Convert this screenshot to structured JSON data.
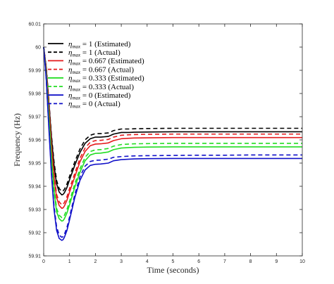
{
  "chart_data": {
    "type": "line",
    "xlabel": "Time (seconds)",
    "ylabel": "Frequency (Hz)",
    "xlim": [
      0,
      10
    ],
    "ylim": [
      59.91,
      60.01
    ],
    "xticks": [
      "0",
      "1",
      "2",
      "3",
      "4",
      "5",
      "6",
      "7",
      "8",
      "9",
      "10"
    ],
    "yticks": [
      "59.91",
      "59.92",
      "59.93",
      "59.94",
      "59.95",
      "59.96",
      "59.97",
      "59.98",
      "59.99",
      "60",
      "60.01"
    ],
    "grid": false,
    "legend_position": "top-left",
    "series": [
      {
        "name_var": "η",
        "name_sub": "max",
        "name_rest": " = 1 (Estimated)",
        "color": "#000000",
        "dash": "solid",
        "x": [
          0,
          0.1,
          0.2,
          0.3,
          0.4,
          0.5,
          0.6,
          0.7,
          0.75,
          0.8,
          0.9,
          1.0,
          1.2,
          1.4,
          1.6,
          1.8,
          2.0,
          2.2,
          2.5,
          2.7,
          3.0,
          3.3,
          3.5,
          4,
          5,
          6,
          7,
          8,
          9,
          10
        ],
        "y": [
          60.0,
          59.991,
          59.976,
          59.961,
          59.949,
          59.941,
          59.9375,
          59.9363,
          59.9365,
          59.9372,
          59.9395,
          59.9428,
          59.949,
          59.9545,
          59.9585,
          59.9605,
          59.9612,
          59.9612,
          59.9615,
          59.9625,
          59.9632,
          59.9632,
          59.9633,
          59.9634,
          59.9635,
          59.9635,
          59.9635,
          59.9635,
          59.9635,
          59.9635
        ]
      },
      {
        "name_var": "η",
        "name_sub": "max",
        "name_rest": " = 1 (Actual)",
        "color": "#000000",
        "dash": "dashed",
        "x": [
          0,
          0.1,
          0.2,
          0.3,
          0.4,
          0.5,
          0.6,
          0.7,
          0.75,
          0.8,
          0.9,
          1.0,
          1.2,
          1.4,
          1.6,
          1.8,
          2.0,
          2.2,
          2.5,
          2.7,
          3.0,
          3.3,
          3.5,
          4,
          5,
          6,
          7,
          8,
          9,
          10
        ],
        "y": [
          60.0,
          59.991,
          59.977,
          59.962,
          59.9505,
          59.9425,
          59.939,
          59.9378,
          59.938,
          59.9387,
          59.941,
          59.9443,
          59.9505,
          59.956,
          59.96,
          59.962,
          59.9627,
          59.9627,
          59.963,
          59.964,
          59.9647,
          59.9647,
          59.9648,
          59.9649,
          59.965,
          59.965,
          59.965,
          59.965,
          59.965,
          59.965
        ]
      },
      {
        "name_var": "η",
        "name_sub": "max",
        "name_rest": " = 0.667 (Estimated)",
        "color": "#e41a1c",
        "dash": "solid",
        "x": [
          0,
          0.1,
          0.2,
          0.3,
          0.4,
          0.5,
          0.6,
          0.7,
          0.75,
          0.8,
          0.9,
          1.0,
          1.2,
          1.4,
          1.6,
          1.8,
          2.0,
          2.2,
          2.5,
          2.7,
          3.0,
          3.3,
          3.5,
          4,
          5,
          6,
          7,
          8,
          9,
          10
        ],
        "y": [
          60.0,
          59.99,
          59.974,
          59.957,
          59.944,
          59.935,
          59.9317,
          59.9305,
          59.9307,
          59.9315,
          59.934,
          59.9375,
          59.944,
          59.9505,
          59.955,
          59.9575,
          59.9582,
          59.9583,
          59.9587,
          59.9597,
          59.9605,
          59.9607,
          59.9608,
          59.9609,
          59.961,
          59.961,
          59.961,
          59.961,
          59.961,
          59.961
        ]
      },
      {
        "name_var": "η",
        "name_sub": "max",
        "name_rest": " = 0.667 (Actual)",
        "color": "#e41a1c",
        "dash": "dashed",
        "x": [
          0,
          0.1,
          0.2,
          0.3,
          0.4,
          0.5,
          0.6,
          0.7,
          0.75,
          0.8,
          0.9,
          1.0,
          1.2,
          1.4,
          1.6,
          1.8,
          2.0,
          2.2,
          2.5,
          2.7,
          3.0,
          3.3,
          3.5,
          4,
          5,
          6,
          7,
          8,
          9,
          10
        ],
        "y": [
          60.0,
          59.99,
          59.975,
          59.958,
          59.9455,
          59.9365,
          59.9333,
          59.932,
          59.9322,
          59.933,
          59.9355,
          59.939,
          59.9455,
          59.952,
          59.9565,
          59.959,
          59.9597,
          59.9598,
          59.9602,
          59.9612,
          59.962,
          59.9622,
          59.9623,
          59.9624,
          59.9625,
          59.9625,
          59.9625,
          59.9625,
          59.9625,
          59.9625
        ]
      },
      {
        "name_var": "η",
        "name_sub": "max",
        "name_rest": " = 0.333 (Estimated)",
        "color": "#22dd22",
        "dash": "solid",
        "x": [
          0,
          0.1,
          0.2,
          0.3,
          0.4,
          0.5,
          0.6,
          0.7,
          0.75,
          0.8,
          0.9,
          1.0,
          1.2,
          1.4,
          1.6,
          1.8,
          2.0,
          2.2,
          2.5,
          2.7,
          3.0,
          3.3,
          3.5,
          4,
          5,
          6,
          7,
          8,
          9,
          10
        ],
        "y": [
          60.0,
          59.988,
          59.97,
          59.952,
          59.938,
          59.929,
          59.926,
          59.925,
          59.9252,
          59.926,
          59.9285,
          59.932,
          59.9395,
          59.946,
          59.951,
          59.9535,
          59.9542,
          59.9543,
          59.9548,
          59.9558,
          59.9565,
          59.9567,
          59.9568,
          59.9569,
          59.957,
          59.957,
          59.957,
          59.957,
          59.957,
          59.957
        ]
      },
      {
        "name_var": "η",
        "name_sub": "max",
        "name_rest": " = 0.333 (Actual)",
        "color": "#22dd22",
        "dash": "dashed",
        "x": [
          0,
          0.1,
          0.2,
          0.3,
          0.4,
          0.5,
          0.6,
          0.7,
          0.75,
          0.8,
          0.9,
          1.0,
          1.2,
          1.4,
          1.6,
          1.8,
          2.0,
          2.2,
          2.5,
          2.7,
          3.0,
          3.3,
          3.5,
          4,
          5,
          6,
          7,
          8,
          9,
          10
        ],
        "y": [
          60.0,
          59.988,
          59.971,
          59.953,
          59.9395,
          59.9305,
          59.9275,
          59.9265,
          59.9267,
          59.9275,
          59.93,
          59.9335,
          59.941,
          59.9475,
          59.9525,
          59.955,
          59.9557,
          59.9558,
          59.9563,
          59.9573,
          59.958,
          59.9582,
          59.9583,
          59.9584,
          59.9585,
          59.9585,
          59.9585,
          59.9585,
          59.9585,
          59.9585
        ]
      },
      {
        "name_var": "η",
        "name_sub": "max",
        "name_rest": " = 0 (Estimated)",
        "color": "#1010c8",
        "dash": "solid",
        "x": [
          0,
          0.1,
          0.2,
          0.3,
          0.4,
          0.5,
          0.6,
          0.7,
          0.75,
          0.8,
          0.9,
          1.0,
          1.2,
          1.4,
          1.6,
          1.8,
          2.0,
          2.2,
          2.5,
          2.7,
          3.0,
          3.3,
          3.5,
          4,
          5,
          6,
          7,
          8,
          9,
          10
        ],
        "y": [
          60.0,
          59.986,
          59.965,
          59.945,
          59.93,
          59.921,
          59.9175,
          59.9167,
          59.917,
          59.918,
          59.921,
          59.9255,
          59.935,
          59.9425,
          59.947,
          59.949,
          59.9495,
          59.9496,
          59.95,
          59.951,
          59.9515,
          59.9517,
          59.9518,
          59.9519,
          59.952,
          59.952,
          59.952,
          59.952,
          59.952,
          59.952
        ]
      },
      {
        "name_var": "η",
        "name_sub": "max",
        "name_rest": " = 0 (Actual)",
        "color": "#1010c8",
        "dash": "dashed",
        "x": [
          0,
          0.1,
          0.2,
          0.3,
          0.4,
          0.5,
          0.6,
          0.7,
          0.75,
          0.8,
          0.9,
          1.0,
          1.2,
          1.4,
          1.6,
          1.8,
          2.0,
          2.2,
          2.5,
          2.7,
          3.0,
          3.3,
          3.5,
          4,
          5,
          6,
          7,
          8,
          9,
          10
        ],
        "y": [
          60.0,
          59.986,
          59.966,
          59.9465,
          59.9315,
          59.9225,
          59.919,
          59.918,
          59.9183,
          59.9193,
          59.9223,
          59.9268,
          59.9363,
          59.944,
          59.9487,
          59.9507,
          59.9512,
          59.9513,
          59.9517,
          59.9525,
          59.9528,
          59.953,
          59.9531,
          59.9532,
          59.9533,
          59.9534,
          59.9534,
          59.9535,
          59.9535,
          59.9535
        ]
      }
    ]
  }
}
